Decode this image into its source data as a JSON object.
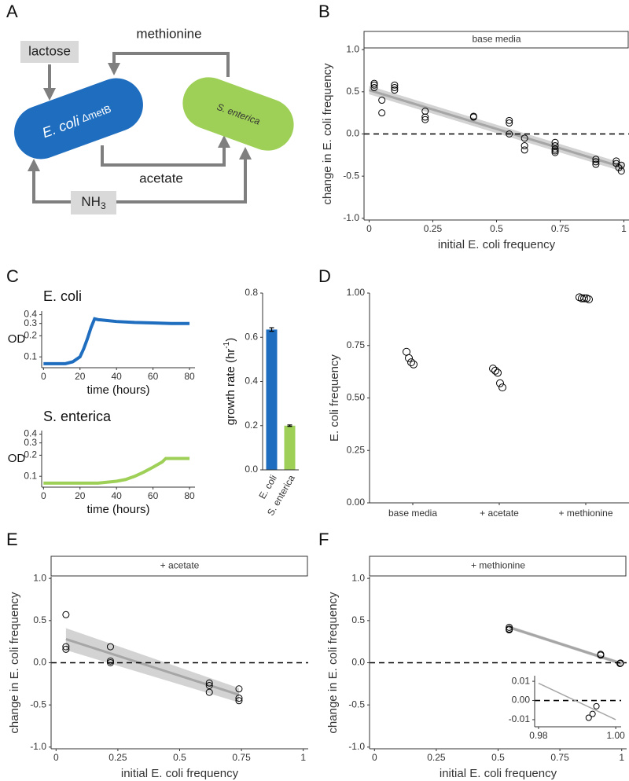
{
  "panel_labels": [
    "A",
    "B",
    "C",
    "D",
    "E",
    "F"
  ],
  "diagram": {
    "nodes": [
      {
        "label": "lactose"
      },
      {
        "label": "E. coli",
        "sublabel": "ΔmetB"
      },
      {
        "label": "S. enterica"
      },
      {
        "label": "NH",
        "subscript": "3"
      }
    ],
    "edges": [
      {
        "label": "methionine"
      },
      {
        "label": "acetate"
      }
    ]
  },
  "chart_data": [
    {
      "type": "scatter",
      "strip": "base media",
      "xlabel": "initial E. coli frequency",
      "ylabel": "change in E. coli frequency",
      "x": [
        0.02,
        0.02,
        0.02,
        0.05,
        0.05,
        0.1,
        0.1,
        0.1,
        0.22,
        0.22,
        0.22,
        0.41,
        0.41,
        0.55,
        0.55,
        0.55,
        0.61,
        0.61,
        0.61,
        0.73,
        0.73,
        0.73,
        0.73,
        0.73,
        0.89,
        0.89,
        0.89,
        0.97,
        0.97,
        0.98,
        0.99,
        0.99
      ],
      "values": [
        0.6,
        0.55,
        0.58,
        0.4,
        0.25,
        0.58,
        0.55,
        0.52,
        0.27,
        0.2,
        0.17,
        0.21,
        0.2,
        0.16,
        0.13,
        0.0,
        -0.05,
        -0.14,
        -0.19,
        -0.1,
        -0.14,
        -0.18,
        -0.2,
        -0.22,
        -0.3,
        -0.33,
        -0.36,
        -0.32,
        -0.35,
        -0.4,
        -0.37,
        -0.44
      ],
      "xlim": [
        -0.02,
        1.02
      ],
      "xticks": [
        0,
        0.25,
        0.5,
        0.75,
        1
      ],
      "ylim": [
        -1.02,
        1.02
      ],
      "yticks": [
        {
          "value": -1,
          "label": "-1.0"
        },
        -0.5,
        {
          "value": 0,
          "label": "0.0"
        },
        0.5,
        {
          "value": 1,
          "label": "1.0"
        }
      ],
      "hline": 0,
      "fit": {
        "x": [
          0,
          1
        ],
        "y": [
          0.52,
          -0.4
        ],
        "lower": [
          0.47,
          -0.45
        ],
        "upper": [
          0.57,
          -0.35
        ]
      },
      "fit_color": "#a6a6a6",
      "band_color": "#d3d3d3",
      "point_color": "#000000"
    },
    {
      "type": "line",
      "title": "E. coli",
      "ylabel": "OD",
      "xlabel": "time (hours)",
      "log_y": true,
      "x": [
        0,
        4,
        8,
        12,
        16,
        20,
        22,
        24,
        26,
        28,
        30,
        35,
        40,
        50,
        60,
        70,
        80
      ],
      "values": [
        0.08,
        0.08,
        0.08,
        0.08,
        0.085,
        0.1,
        0.13,
        0.18,
        0.26,
        0.35,
        0.34,
        0.33,
        0.32,
        0.31,
        0.305,
        0.3,
        0.3
      ],
      "color": "#1f6dbf",
      "xlim": [
        -1,
        83
      ],
      "xticks": [
        0,
        20,
        40,
        60,
        80
      ],
      "ylim": [
        0.07,
        0.45
      ],
      "yticks": [
        0.1,
        0.2,
        0.3,
        0.4
      ]
    },
    {
      "type": "line",
      "title": "S. enterica",
      "ylabel": "OD",
      "xlabel": "time (hours)",
      "log_y": true,
      "x": [
        0,
        10,
        20,
        30,
        40,
        45,
        50,
        55,
        60,
        65,
        67,
        70,
        80
      ],
      "values": [
        0.08,
        0.08,
        0.08,
        0.08,
        0.085,
        0.09,
        0.1,
        0.115,
        0.135,
        0.16,
        0.18,
        0.18,
        0.18
      ],
      "color": "#9ed057",
      "xlim": [
        -1,
        83
      ],
      "xticks": [
        0,
        20,
        40,
        60,
        80
      ],
      "ylim": [
        0.07,
        0.45
      ],
      "yticks": [
        0.1,
        0.2,
        0.3,
        0.4
      ]
    },
    {
      "type": "bar",
      "ylabel": "growth rate (hr",
      "ylabel_superscript": "-1",
      "ylabel_suffix": ")",
      "categories": [
        "E. coli",
        "S. enterica"
      ],
      "values": [
        0.635,
        0.2
      ],
      "errors": [
        0.008,
        0.003
      ],
      "colors": [
        "#1f6dbf",
        "#9ed057"
      ],
      "ylim": [
        0,
        0.8
      ],
      "yticks": [
        {
          "value": 0,
          "label": "0.0"
        },
        0.2,
        0.4,
        0.6,
        0.8
      ]
    },
    {
      "type": "dot",
      "ylabel": "E. coli frequency",
      "categories": [
        "base media",
        "+ acetate",
        "+ methionine"
      ],
      "values": [
        [
          0.72,
          0.69,
          0.67,
          0.66
        ],
        [
          0.64,
          0.63,
          0.62,
          0.57,
          0.55
        ],
        [
          0.98,
          0.975,
          0.975,
          0.975,
          0.97
        ]
      ],
      "ylim": [
        0,
        1
      ],
      "yticks": [
        {
          "value": 0,
          "label": "0.00"
        },
        0.25,
        {
          "value": 0.5,
          "label": "0.50"
        },
        0.75,
        {
          "value": 1,
          "label": "1.00"
        }
      ]
    },
    {
      "type": "scatter",
      "strip": "+ acetate",
      "xlabel": "initial E. coli frequency",
      "ylabel": "change in E. coli frequency",
      "x": [
        0.04,
        0.04,
        0.04,
        0.22,
        0.22,
        0.22,
        0.62,
        0.62,
        0.62,
        0.74,
        0.74,
        0.74
      ],
      "values": [
        0.57,
        0.19,
        0.16,
        0.19,
        0.02,
        0.0,
        -0.24,
        -0.27,
        -0.35,
        -0.31,
        -0.42,
        -0.45
      ],
      "xlim": [
        -0.02,
        1.02
      ],
      "xticks": [
        0,
        0.25,
        0.5,
        0.75,
        1
      ],
      "ylim": [
        -1.02,
        1.02
      ],
      "yticks": [
        {
          "value": -1,
          "label": "-1.0"
        },
        -0.5,
        {
          "value": 0,
          "label": "0.0"
        },
        0.5,
        {
          "value": 1,
          "label": "1.0"
        }
      ],
      "hline": 0,
      "fit": {
        "x": [
          0.04,
          0.74
        ],
        "y": [
          0.28,
          -0.38
        ],
        "lower": [
          0.15,
          -0.47
        ],
        "upper": [
          0.41,
          -0.3
        ]
      },
      "fit_color": "#a6a6a6",
      "band_color": "#d3d3d3",
      "point_color": "#000000"
    },
    {
      "type": "scatter",
      "strip": "+ methionine",
      "xlabel": "initial E. coli frequency",
      "ylabel": "change in E. coli frequency",
      "x": [
        0.545,
        0.545,
        0.545,
        0.915,
        0.915,
        0.993,
        0.994,
        0.995
      ],
      "values": [
        0.42,
        0.4,
        0.39,
        0.1,
        0.09,
        -0.009,
        -0.007,
        -0.003
      ],
      "xlim": [
        -0.02,
        1.02
      ],
      "xticks": [
        0,
        0.25,
        0.5,
        0.75,
        1
      ],
      "ylim": [
        -1.02,
        1.02
      ],
      "yticks": [
        {
          "value": -1,
          "label": "-1.0"
        },
        -0.5,
        {
          "value": 0,
          "label": "0.0"
        },
        0.5,
        {
          "value": 1,
          "label": "1.0"
        }
      ],
      "hline": 0,
      "fit": {
        "x": [
          0.545,
          1
        ],
        "y": [
          0.42,
          -0.01
        ],
        "lower": [
          0.4,
          -0.03
        ],
        "upper": [
          0.44,
          0.01
        ]
      },
      "fit_color": "#a6a6a6",
      "band_color": "#d3d3d3",
      "point_color": "#000000",
      "inset": {
        "xlim": [
          0.979,
          1.0014
        ],
        "xticks": [
          0.98,
          {
            "value": 1,
            "label": "1.00"
          }
        ],
        "ylim": [
          -0.0137,
          0.0129
        ],
        "yticks": [
          -0.01,
          {
            "value": 0,
            "label": "0.00"
          },
          0.01
        ],
        "hline": 0,
        "fit": {
          "x": [
            0.98,
            1
          ],
          "y": [
            0.009,
            -0.01
          ]
        }
      }
    }
  ]
}
